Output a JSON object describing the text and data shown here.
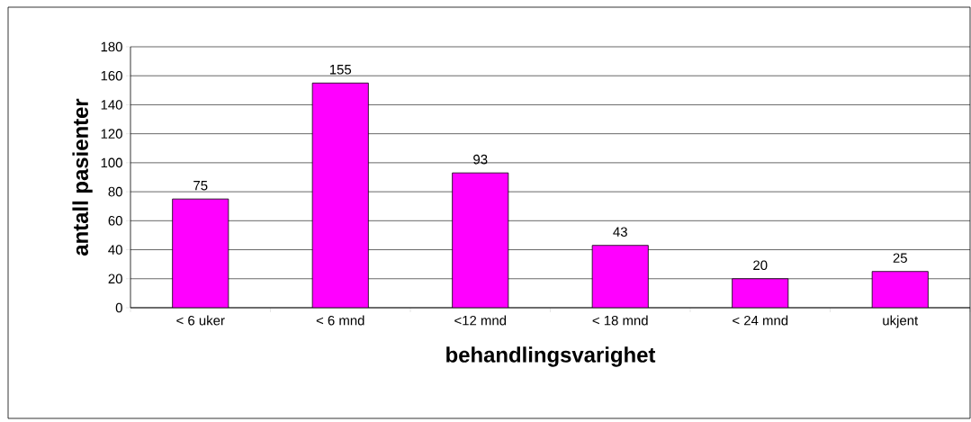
{
  "chart_data": {
    "type": "bar",
    "xlabel": "behandlingsvarighet",
    "ylabel": "antall pasienter",
    "categories": [
      "< 6 uker",
      "< 6 mnd",
      "<12 mnd",
      "< 18 mnd",
      "< 24 mnd",
      "ukjent"
    ],
    "values": [
      75,
      155,
      93,
      43,
      20,
      25
    ],
    "color": "#ff00ff",
    "ylim": [
      0,
      180
    ],
    "yticks": [
      0,
      20,
      40,
      60,
      80,
      100,
      120,
      140,
      160,
      180
    ],
    "grid": "y",
    "data_labels": true
  }
}
